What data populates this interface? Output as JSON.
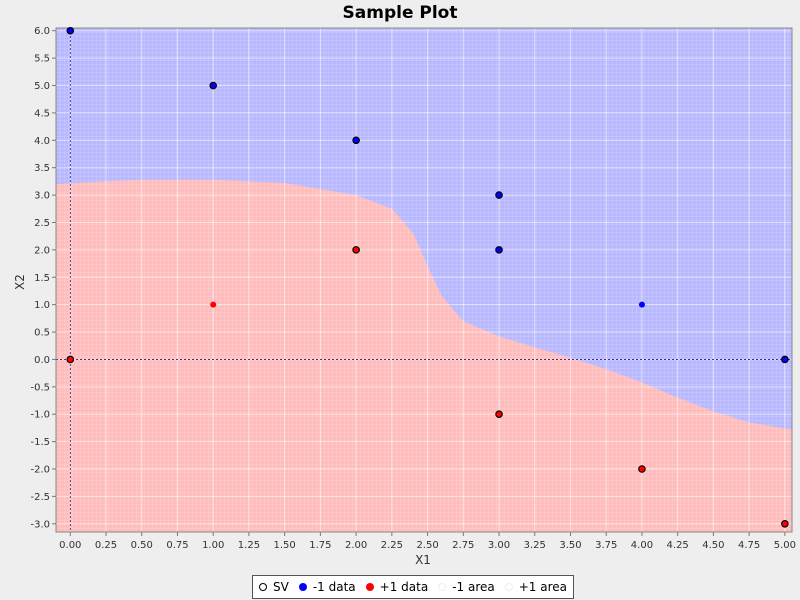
{
  "chart_data": {
    "type": "scatter",
    "title": "Sample Plot",
    "xlabel": "X1",
    "ylabel": "X2",
    "xlim": [
      -0.1,
      5.05
    ],
    "ylim": [
      -3.15,
      6.05
    ],
    "x_ticks": [
      "0.00",
      "0.25",
      "0.50",
      "0.75",
      "1.00",
      "1.25",
      "1.50",
      "1.75",
      "2.00",
      "2.25",
      "2.50",
      "2.75",
      "3.00",
      "3.25",
      "3.50",
      "3.75",
      "4.00",
      "4.25",
      "4.50",
      "4.75",
      "5.00"
    ],
    "y_ticks": [
      "-3.0",
      "-2.5",
      "-2.0",
      "-1.5",
      "-1.0",
      "-0.5",
      "0.0",
      "0.5",
      "1.0",
      "1.5",
      "2.0",
      "2.5",
      "3.0",
      "3.5",
      "4.0",
      "4.5",
      "5.0",
      "5.5",
      "6.0"
    ],
    "grid": true,
    "reference_lines": {
      "x": 0,
      "y": 0
    },
    "legend_position": "bottom",
    "series": [
      {
        "name": "-1 data",
        "color": "#0000ff",
        "points": [
          [
            0,
            6
          ],
          [
            1,
            5
          ],
          [
            2,
            4
          ],
          [
            3,
            3
          ],
          [
            3,
            2
          ],
          [
            4,
            1
          ],
          [
            5,
            0
          ]
        ]
      },
      {
        "name": "+1 data",
        "color": "#ff0000",
        "points": [
          [
            0,
            0
          ],
          [
            1,
            1
          ],
          [
            2,
            2
          ],
          [
            3,
            -1
          ],
          [
            4,
            -2
          ],
          [
            5,
            -3
          ]
        ]
      },
      {
        "name": "SV",
        "color": "#000000",
        "points": [
          [
            0,
            6
          ],
          [
            1,
            5
          ],
          [
            2,
            4
          ],
          [
            3,
            3
          ],
          [
            3,
            2
          ],
          [
            5,
            0
          ],
          [
            0,
            0
          ],
          [
            2,
            2
          ],
          [
            3,
            -1
          ],
          [
            4,
            -2
          ],
          [
            5,
            -3
          ]
        ]
      }
    ],
    "areas": [
      {
        "name": "-1 area",
        "color": "#b8b8ff"
      },
      {
        "name": "+1 area",
        "color": "#ffbcbc"
      }
    ],
    "decision_boundary": [
      [
        -0.1,
        3.2
      ],
      [
        0.25,
        3.25
      ],
      [
        0.5,
        3.28
      ],
      [
        1.0,
        3.28
      ],
      [
        1.5,
        3.22
      ],
      [
        2.0,
        3.0
      ],
      [
        2.25,
        2.75
      ],
      [
        2.4,
        2.3
      ],
      [
        2.5,
        1.7
      ],
      [
        2.6,
        1.15
      ],
      [
        2.75,
        0.7
      ],
      [
        3.0,
        0.42
      ],
      [
        3.25,
        0.22
      ],
      [
        3.5,
        0.03
      ],
      [
        3.75,
        -0.18
      ],
      [
        4.0,
        -0.42
      ],
      [
        4.25,
        -0.7
      ],
      [
        4.5,
        -0.95
      ],
      [
        4.75,
        -1.15
      ],
      [
        5.05,
        -1.28
      ]
    ]
  },
  "legend": [
    {
      "label": "SV",
      "marker": "ring",
      "color": "#000000"
    },
    {
      "label": "-1 data",
      "marker": "dot",
      "color": "#0000ff"
    },
    {
      "label": "+1 data",
      "marker": "dot",
      "color": "#ff0000"
    },
    {
      "label": "-1 area",
      "marker": "none",
      "color": "#ffffff"
    },
    {
      "label": "+1 area",
      "marker": "none",
      "color": "#ffffff"
    }
  ]
}
